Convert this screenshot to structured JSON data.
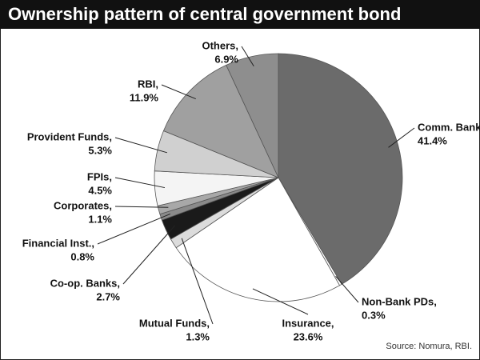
{
  "chart_data": {
    "type": "pie",
    "title": "Ownership pattern of central government bond",
    "source": "Source: Nomura, RBI.",
    "categories": [
      "Comm. Banks,",
      "Non-Bank PDs,",
      "Insurance,",
      "Mutual Funds,",
      "Co-op. Banks,",
      "Financial Inst.,",
      "Corporates,",
      "FPIs,",
      "Provident Funds,",
      "RBI,",
      "Others,"
    ],
    "values": [
      41.4,
      0.3,
      23.6,
      1.3,
      2.7,
      0.8,
      1.1,
      4.5,
      5.3,
      11.9,
      6.9
    ],
    "value_labels": [
      "41.4%",
      "0.3%",
      "23.6%",
      "1.3%",
      "2.7%",
      "0.8%",
      "1.1%",
      "4.5%",
      "5.3%",
      "11.9%",
      "6.9%"
    ],
    "colors": [
      "#6b6b6b",
      "#ffffff",
      "#ffffff",
      "#dcdcdc",
      "#1a1a1a",
      "#8a8a8a",
      "#a8a8a8",
      "#f4f4f4",
      "#d0d0d0",
      "#a0a0a0",
      "#8e8e8e"
    ]
  }
}
